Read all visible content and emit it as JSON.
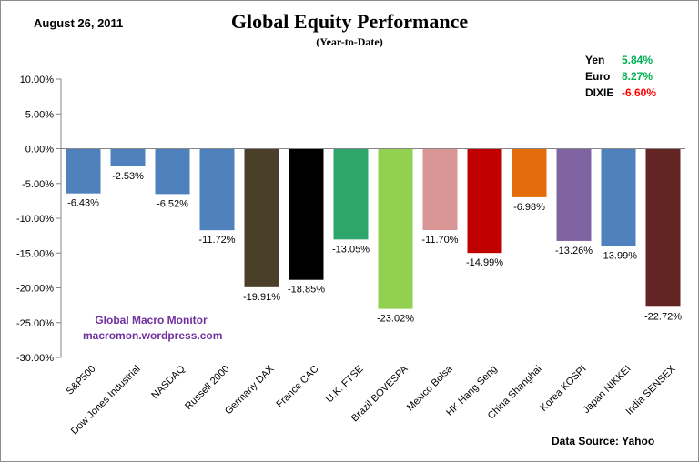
{
  "header": {
    "date": "August 26,  2011",
    "title": "Global Equity Performance",
    "subtitle": "(Year-to-Date)"
  },
  "currencies": [
    {
      "label": "Yen",
      "value": "5.84%",
      "color": "#00b050"
    },
    {
      "label": "Euro",
      "value": "8.27%",
      "color": "#00b050"
    },
    {
      "label": "DIXIE",
      "value": "-6.60%",
      "color": "#ff0000"
    }
  ],
  "watermark": {
    "line1": "Global Macro Monitor",
    "line2": "macromon.wordpress.com"
  },
  "source": "Data Source:    Yahoo",
  "chart_data": {
    "type": "bar",
    "title": "Global Equity Performance",
    "subtitle": "(Year-to-Date)",
    "xlabel": "",
    "ylabel": "",
    "ylim": [
      -30,
      10
    ],
    "yticks": [
      10,
      5,
      0,
      -5,
      -10,
      -15,
      -20,
      -25,
      -30
    ],
    "ytick_labels": [
      "10.00%",
      "5.00%",
      "0.00%",
      "-5.00%",
      "-10.00%",
      "-15.00%",
      "-20.00%",
      "-25.00%",
      "-30.00%"
    ],
    "grid": false,
    "categories": [
      "S&P500",
      "Dow Jones Industrial",
      "NASDAQ",
      "Russell 2000",
      "Germany DAX",
      "France CAC",
      "U.K. FTSE",
      "Brazil BOVESPA",
      "Mexico Bolsa",
      "HK Hang Seng",
      "China Shanghai",
      "Korea KOSPI",
      "Japan NIKKEI",
      "India SENSEX"
    ],
    "values": [
      -6.43,
      -2.53,
      -6.52,
      -11.72,
      -19.91,
      -18.85,
      -13.05,
      -23.02,
      -11.7,
      -14.99,
      -6.98,
      -13.26,
      -13.99,
      -22.72
    ],
    "data_labels": [
      "-6.43%",
      "-2.53%",
      "-6.52%",
      "-11.72%",
      "-19.91%",
      "-18.85%",
      "-13.05%",
      "-23.02%",
      "-11.70%",
      "-14.99%",
      "-6.98%",
      "-13.26%",
      "-13.99%",
      "-22.72%"
    ],
    "colors": [
      "#4f81bd",
      "#4f81bd",
      "#4f81bd",
      "#4f81bd",
      "#4a3f29",
      "#000000",
      "#2ea56b",
      "#92d050",
      "#d99694",
      "#c00000",
      "#e46c0a",
      "#8064a2",
      "#4f81bd",
      "#632523"
    ]
  }
}
